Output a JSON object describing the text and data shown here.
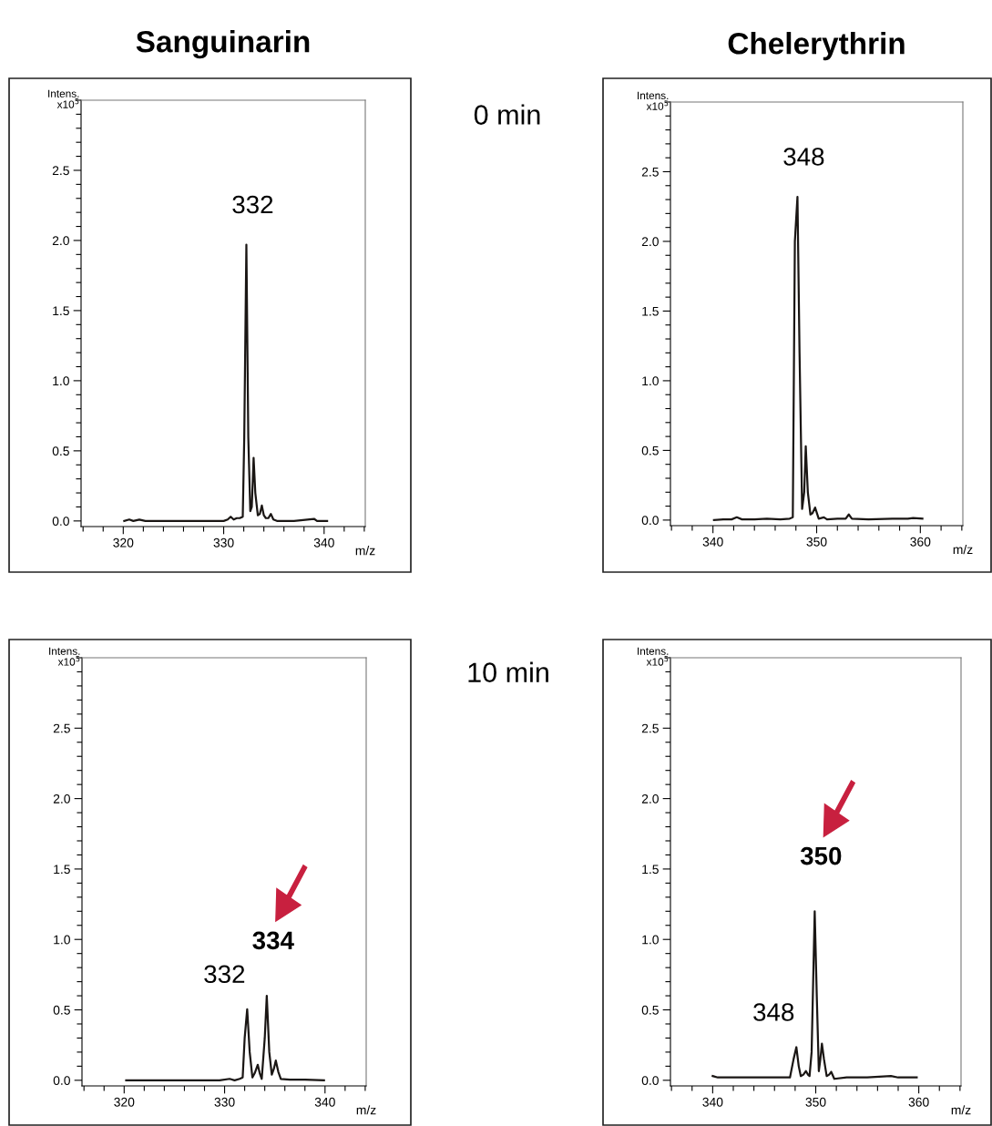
{
  "chart_data": [
    {
      "type": "line",
      "title": "Sanguinarin",
      "xlabel": "m/z",
      "ylabel": "Intens.\nx10$^{5}$",
      "annotations": [
        "0 min",
        {
          "text": "332",
          "x": 332.26,
          "y": 1.97
        }
      ],
      "x": [
        320.1,
        320.6,
        321.0,
        321.6,
        322.2,
        324,
        326,
        328.5,
        330.0,
        330.4,
        330.7,
        331.0,
        331.3,
        331.6,
        331.9,
        332.05,
        332.26,
        332.45,
        332.65,
        332.8,
        332.98,
        333.15,
        333.4,
        333.6,
        333.8,
        334.0,
        334.2,
        334.45,
        334.7,
        334.95,
        335.3,
        337,
        339.0,
        339.3,
        340.3
      ],
      "series": [
        {
          "color": "#1a1614",
          "values": [
            0,
            0.01,
            0,
            0.01,
            0,
            0,
            0,
            0,
            0,
            0.01,
            0.03,
            0.01,
            0.02,
            0.02,
            0.03,
            0.6,
            1.97,
            0.6,
            0.07,
            0.1,
            0.45,
            0.2,
            0.04,
            0.05,
            0.11,
            0.04,
            0.02,
            0.02,
            0.05,
            0.01,
            0,
            0,
            0.015,
            0,
            0
          ]
        }
      ],
      "xlim": [
        315.8,
        344.1
      ],
      "ylim": [
        -0.04,
        3.0
      ],
      "xticks": [
        320,
        330,
        340
      ],
      "yticks": [
        {
          "value": 0,
          "label": "0.0"
        },
        {
          "value": 0.5,
          "label": "0.5"
        },
        {
          "value": 1.0,
          "label": "1.0"
        },
        {
          "value": 1.5,
          "label": "1.5"
        },
        {
          "value": 2.0,
          "label": "2.0"
        },
        {
          "value": 2.5,
          "label": "2.5"
        }
      ]
    },
    {
      "type": "line",
      "title": "Chelerythrin",
      "xlabel": "m/z",
      "ylabel": "Intens.\nx10$^{5}$",
      "annotations": [
        {
          "text": "348",
          "x": 348.15,
          "y": 2.32
        }
      ],
      "x": [
        340.1,
        341.0,
        341.8,
        342.3,
        342.8,
        344,
        345.2,
        346.5,
        347.4,
        347.7,
        347.9,
        348.15,
        348.35,
        348.6,
        348.8,
        348.95,
        349.15,
        349.4,
        349.6,
        349.85,
        350.2,
        350.7,
        351.0,
        352.0,
        352.8,
        353.1,
        353.4,
        355,
        357.3,
        358.8,
        359.3,
        360.2
      ],
      "series": [
        {
          "color": "#1a1614",
          "values": [
            0,
            0.005,
            0.005,
            0.02,
            0.005,
            0.005,
            0.01,
            0.005,
            0.01,
            0.02,
            2.0,
            2.32,
            1.2,
            0.08,
            0.2,
            0.53,
            0.2,
            0.04,
            0.05,
            0.09,
            0.01,
            0.02,
            0.005,
            0.01,
            0.01,
            0.04,
            0.01,
            0.005,
            0.01,
            0.01,
            0.015,
            0.01
          ]
        }
      ],
      "xlim": [
        335.9,
        364.1
      ],
      "ylim": [
        -0.04,
        3.0
      ],
      "xticks": [
        340,
        350,
        360
      ],
      "yticks": [
        {
          "value": 0,
          "label": "0.0"
        },
        {
          "value": 0.5,
          "label": "0.5"
        },
        {
          "value": 1.0,
          "label": "1.0"
        },
        {
          "value": 1.5,
          "label": "1.5"
        },
        {
          "value": 2.0,
          "label": "2.0"
        },
        {
          "value": 2.5,
          "label": "2.5"
        }
      ]
    },
    {
      "type": "line",
      "xlabel": "m/z",
      "ylabel": "Intens.\nx10$^{5}$",
      "annotations": [
        "10 min",
        {
          "text": "334",
          "x": 334.2,
          "y": 0.6
        },
        {
          "text": "332",
          "x": 332.25,
          "y": 0.505
        }
      ],
      "x": [
        320.2,
        322,
        324,
        326,
        328,
        329.5,
        330.5,
        331.0,
        331.5,
        331.8,
        332.0,
        332.25,
        332.5,
        332.77,
        333.0,
        333.3,
        333.5,
        333.7,
        334.0,
        334.2,
        334.45,
        334.7,
        334.9,
        335.1,
        335.35,
        335.6,
        336.5,
        338,
        339.9
      ],
      "series": [
        {
          "color": "#1a1614",
          "values": [
            0,
            0,
            0,
            0,
            0,
            0,
            0.01,
            0,
            0.01,
            0.02,
            0.3,
            0.505,
            0.2,
            0.02,
            0.05,
            0.11,
            0.05,
            0.01,
            0.3,
            0.6,
            0.2,
            0.04,
            0.08,
            0.14,
            0.06,
            0.01,
            0.005,
            0.005,
            0
          ]
        }
      ],
      "xlim": [
        315.8,
        344.1
      ],
      "ylim": [
        -0.04,
        3.0
      ],
      "xticks": [
        320,
        330,
        340
      ],
      "yticks": [
        {
          "value": 0,
          "label": "0.0"
        },
        {
          "value": 0.5,
          "label": "0.5"
        },
        {
          "value": 1.0,
          "label": "1.0"
        },
        {
          "value": 1.5,
          "label": "1.5"
        },
        {
          "value": 2.0,
          "label": "2.0"
        },
        {
          "value": 2.5,
          "label": "2.5"
        }
      ]
    },
    {
      "type": "line",
      "xlabel": "m/z",
      "ylabel": "Intens.\nx10$^{5}$",
      "annotations": [
        {
          "text": "350",
          "x": 349.9,
          "y": 1.2
        },
        {
          "text": "348",
          "x": 348.12,
          "y": 0.235
        }
      ],
      "x": [
        340.0,
        340.5,
        342,
        344,
        346,
        347.5,
        347.85,
        348.12,
        348.35,
        348.55,
        348.8,
        349.05,
        349.25,
        349.4,
        349.6,
        349.9,
        350.1,
        350.3,
        350.45,
        350.6,
        350.8,
        351.06,
        351.3,
        351.5,
        351.8,
        353,
        355,
        357.3,
        358,
        359.8
      ],
      "series": [
        {
          "color": "#1a1614",
          "values": [
            0.03,
            0.02,
            0.02,
            0.02,
            0.02,
            0.02,
            0.15,
            0.235,
            0.1,
            0.03,
            0.04,
            0.065,
            0.04,
            0.03,
            0.2,
            1.2,
            0.6,
            0.065,
            0.15,
            0.26,
            0.15,
            0.03,
            0.04,
            0.06,
            0.01,
            0.02,
            0.02,
            0.03,
            0.02,
            0.02
          ]
        }
      ],
      "xlim": [
        335.9,
        364.1
      ],
      "ylim": [
        -0.04,
        3.0
      ],
      "xticks": [
        340,
        350,
        360
      ],
      "yticks": [
        {
          "value": 0,
          "label": "0.0"
        },
        {
          "value": 0.5,
          "label": "0.5"
        },
        {
          "value": 1.0,
          "label": "1.0"
        },
        {
          "value": 1.5,
          "label": "1.5"
        },
        {
          "value": 2.0,
          "label": "2.0"
        },
        {
          "value": 2.5,
          "label": "2.5"
        }
      ]
    }
  ]
}
